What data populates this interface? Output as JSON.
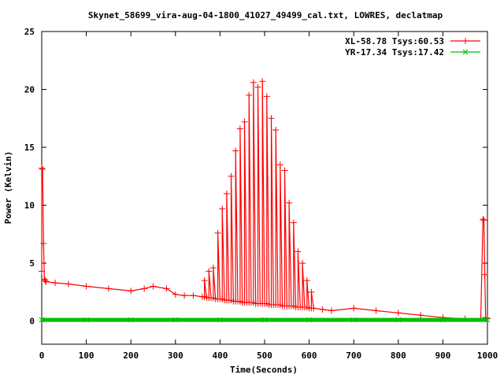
{
  "chart_data": {
    "type": "line",
    "title": "Skynet_58699_vira-aug-04-1800_41027_49499_cal.txt, LOWRES, declatmap",
    "xlabel": "Time(Seconds)",
    "ylabel": "Power (Kelvin)",
    "xlim": [
      0,
      1000
    ],
    "ylim": [
      -2,
      25
    ],
    "xticks": [
      "0",
      "100",
      "200",
      "300",
      "400",
      "500",
      "600",
      "700",
      "800",
      "900",
      "1000"
    ],
    "yticks": [
      "0",
      "5",
      "10",
      "15",
      "20",
      "25"
    ],
    "grid": false,
    "legend_position": "top-right",
    "series": [
      {
        "name": "XL-58.78 Tsys:60.53",
        "color": "#ff0000",
        "marker": "+",
        "x": [
          0,
          0,
          2,
          4,
          6,
          8,
          10,
          30,
          60,
          100,
          150,
          200,
          230,
          250,
          280,
          300,
          320,
          340,
          360,
          365,
          365,
          370,
          375,
          375,
          380,
          385,
          385,
          390,
          395,
          395,
          400,
          405,
          405,
          410,
          415,
          415,
          420,
          425,
          425,
          430,
          435,
          435,
          440,
          445,
          445,
          450,
          455,
          455,
          460,
          465,
          465,
          470,
          475,
          475,
          480,
          485,
          485,
          490,
          495,
          495,
          500,
          505,
          505,
          510,
          515,
          515,
          520,
          525,
          525,
          530,
          535,
          535,
          540,
          545,
          545,
          550,
          555,
          555,
          560,
          565,
          565,
          570,
          575,
          575,
          580,
          585,
          585,
          590,
          595,
          595,
          600,
          605,
          605,
          610,
          630,
          650,
          700,
          750,
          800,
          850,
          900,
          950,
          985,
          990,
          992,
          994,
          996,
          1000
        ],
        "y": [
          4.3,
          13.2,
          13.1,
          6.7,
          3.6,
          3.5,
          3.4,
          3.3,
          3.2,
          3.0,
          2.8,
          2.6,
          2.8,
          3.0,
          2.8,
          2.3,
          2.2,
          2.2,
          2.1,
          2.1,
          3.5,
          2.0,
          2.0,
          4.3,
          2.0,
          2.0,
          4.6,
          1.9,
          1.9,
          7.6,
          1.9,
          1.9,
          9.7,
          1.8,
          1.8,
          11.0,
          1.8,
          1.8,
          12.5,
          1.7,
          1.7,
          14.7,
          1.7,
          1.7,
          16.6,
          1.6,
          1.6,
          17.2,
          1.6,
          1.6,
          19.5,
          1.6,
          1.6,
          20.6,
          1.5,
          1.5,
          20.2,
          1.5,
          1.5,
          20.7,
          1.5,
          1.5,
          19.4,
          1.4,
          1.4,
          17.5,
          1.4,
          1.4,
          16.5,
          1.4,
          1.4,
          13.5,
          1.3,
          1.3,
          13.0,
          1.3,
          1.3,
          10.2,
          1.3,
          1.3,
          8.5,
          1.2,
          1.2,
          6.0,
          1.2,
          1.2,
          5.0,
          1.2,
          1.2,
          3.5,
          1.1,
          1.1,
          2.5,
          1.1,
          1.0,
          0.9,
          1.1,
          0.9,
          0.7,
          0.5,
          0.3,
          0.2,
          0.2,
          8.8,
          8.7,
          4.0,
          0.3,
          0.2
        ]
      },
      {
        "name": "YR-17.34 Tsys:17.42",
        "color": "#00c000",
        "marker": "x",
        "x": [
          0,
          100,
          200,
          300,
          400,
          500,
          600,
          700,
          800,
          900,
          1000
        ],
        "y": [
          0.1,
          0.1,
          0.1,
          0.1,
          0.1,
          0.1,
          0.1,
          0.1,
          0.1,
          0.1,
          0.1
        ]
      }
    ]
  }
}
